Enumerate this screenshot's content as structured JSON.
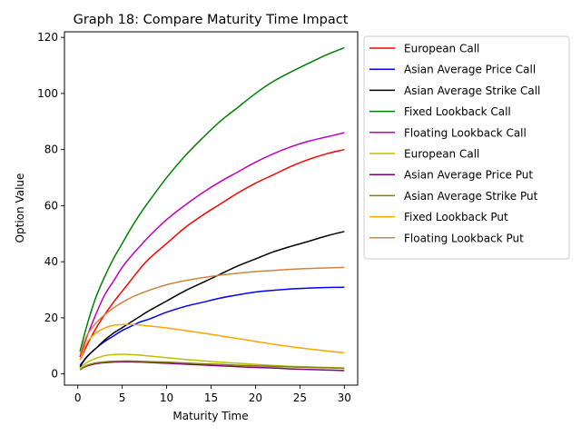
{
  "chart_data": {
    "type": "line",
    "title": "Graph 18: Compare Maturity Time Impact",
    "xlabel": "Maturity Time",
    "ylabel": "Option Value",
    "xlim": [
      -1.5,
      31.5
    ],
    "ylim": [
      -4,
      122
    ],
    "xticks": [
      0,
      5,
      10,
      15,
      20,
      25,
      30
    ],
    "yticks": [
      0,
      20,
      40,
      60,
      80,
      100,
      120
    ],
    "grid": false,
    "legend_position": "outside-right-top",
    "x": [
      0.25,
      1,
      2,
      3,
      4,
      5,
      6,
      7,
      8,
      10,
      12,
      14,
      16,
      18,
      20,
      22,
      24,
      26,
      28,
      30
    ],
    "series": [
      {
        "name": "European Call",
        "color": "#ff0000",
        "values": [
          5,
          10,
          16,
          21,
          25.5,
          29.5,
          33.5,
          37.5,
          41,
          46.5,
          52,
          56.5,
          60.5,
          64.5,
          68,
          71,
          74,
          76.5,
          78.5,
          80
        ]
      },
      {
        "name": "Asian Average Price Call",
        "color": "#0000ff",
        "values": [
          3,
          6,
          9,
          11.5,
          13.5,
          15.5,
          17,
          18.5,
          19.5,
          22,
          24,
          25.5,
          27,
          28.2,
          29.2,
          29.8,
          30.3,
          30.6,
          30.8,
          30.9
        ]
      },
      {
        "name": "Asian Average Strike Call",
        "color": "#000000",
        "values": [
          2.5,
          6,
          9,
          12,
          14.5,
          16.5,
          18.5,
          20.5,
          22.5,
          26,
          29.5,
          32.5,
          35.5,
          38.5,
          41,
          43.5,
          45.5,
          47.3,
          49.2,
          50.8
        ]
      },
      {
        "name": "Fixed Lookback Call",
        "color": "#008000",
        "values": [
          8,
          17,
          27,
          34.5,
          41,
          46.5,
          52,
          57,
          61.5,
          70,
          77.5,
          84,
          90,
          95,
          100,
          104.3,
          107.7,
          110.8,
          113.8,
          116.3
        ]
      },
      {
        "name": "Floating Lookback Call",
        "color": "#bf00bf",
        "values": [
          6,
          13,
          21,
          28,
          33,
          38,
          42,
          45.5,
          49,
          55,
          60,
          64.5,
          68.5,
          72,
          75.5,
          78.5,
          81,
          83,
          84.5,
          86
        ]
      },
      {
        "name": "European Call",
        "color": "#bfbf00",
        "values": [
          2,
          4,
          5.5,
          6.5,
          6.9,
          7,
          6.9,
          6.7,
          6.4,
          5.8,
          5.2,
          4.7,
          4.2,
          3.8,
          3.4,
          3,
          2.7,
          2.5,
          2.3,
          2.1
        ]
      },
      {
        "name": "Asian Average Price Put",
        "color": "#800080",
        "values": [
          1.5,
          2.8,
          3.6,
          4,
          4.2,
          4.3,
          4.3,
          4.2,
          4.1,
          3.8,
          3.5,
          3.2,
          2.9,
          2.6,
          2.3,
          2.1,
          1.8,
          1.6,
          1.4,
          1.2
        ]
      },
      {
        "name": "Asian Average Strike Put",
        "color": "#808000",
        "values": [
          1.5,
          3,
          3.9,
          4.3,
          4.5,
          4.6,
          4.6,
          4.5,
          4.4,
          4.2,
          3.9,
          3.6,
          3.4,
          3.1,
          2.9,
          2.7,
          2.5,
          2.3,
          2.2,
          2
        ]
      },
      {
        "name": "Fixed Lookback Put",
        "color": "#ffa500",
        "values": [
          5,
          11,
          14.5,
          16.3,
          17.3,
          17.6,
          17.6,
          17.4,
          17.1,
          16.4,
          15.5,
          14.6,
          13.6,
          12.6,
          11.6,
          10.6,
          9.7,
          8.9,
          8.2,
          7.5
        ]
      },
      {
        "name": "Floating Lookback Put",
        "color": "#cd853f",
        "values": [
          7,
          13.5,
          18,
          21,
          23.5,
          25.5,
          27.2,
          28.6,
          29.8,
          31.8,
          33.2,
          34.3,
          35.2,
          35.9,
          36.5,
          36.9,
          37.3,
          37.6,
          37.8,
          38
        ]
      }
    ]
  }
}
